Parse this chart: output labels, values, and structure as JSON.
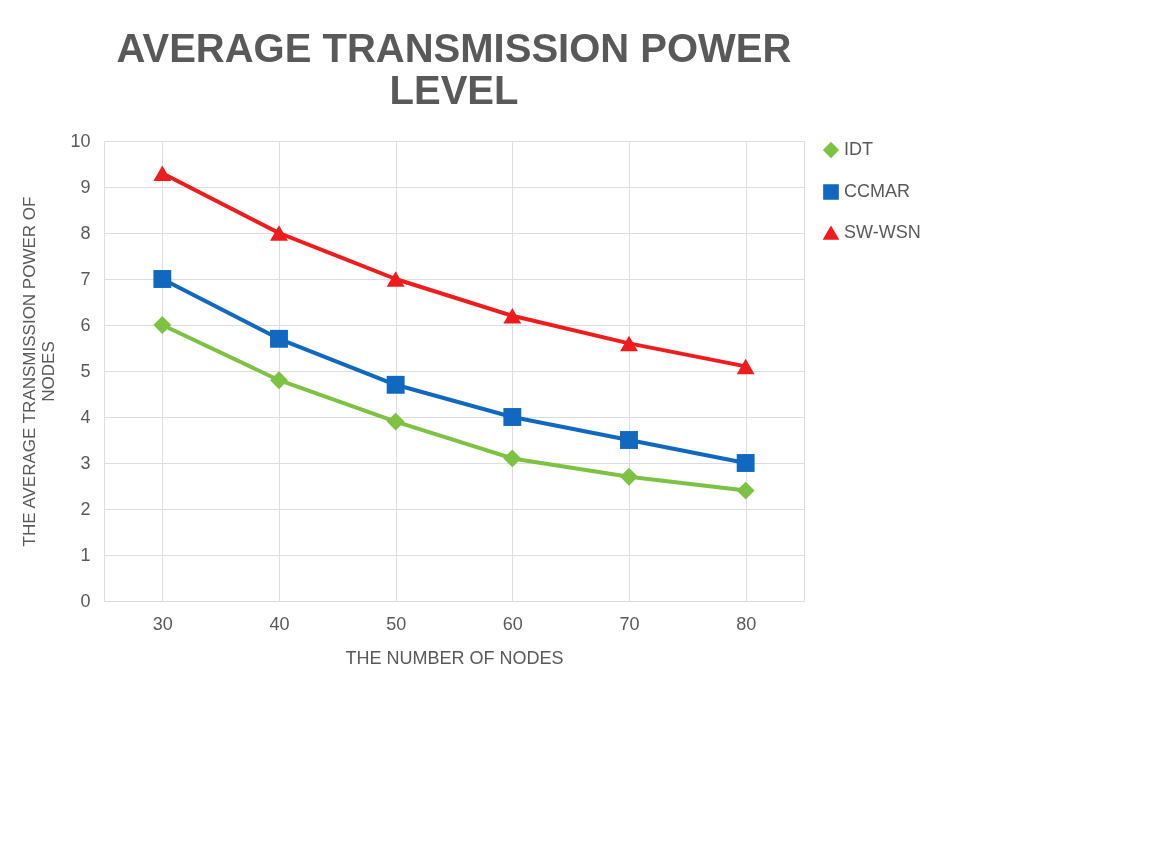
{
  "chart_data": {
    "type": "line",
    "title": "AVERAGE TRANSMISSION POWER LEVEL",
    "xlabel": "THE NUMBER OF NODES",
    "ylabel": "THE AVERAGE TRANSMISSION POWER OF NODES",
    "categories": [
      "30",
      "40",
      "50",
      "60",
      "70",
      "80"
    ],
    "series": [
      {
        "name": "IDT",
        "color": "#7dc242",
        "marker": "diamond",
        "values": [
          6.0,
          4.8,
          3.9,
          3.1,
          2.7,
          2.4
        ]
      },
      {
        "name": "CCMAR",
        "color": "#1068c0",
        "marker": "square",
        "values": [
          7.0,
          5.7,
          4.7,
          4.0,
          3.5,
          3.0
        ]
      },
      {
        "name": "SW-WSN",
        "color": "#ee1c1c",
        "marker": "triangle",
        "values": [
          9.3,
          8.0,
          7.0,
          6.2,
          5.6,
          5.1
        ]
      }
    ],
    "ylim": [
      0,
      10
    ],
    "yticks": [
      0,
      1,
      2,
      3,
      4,
      5,
      6,
      7,
      8,
      9,
      10
    ],
    "grid": true,
    "legend": "right",
    "line_style": "solid"
  }
}
